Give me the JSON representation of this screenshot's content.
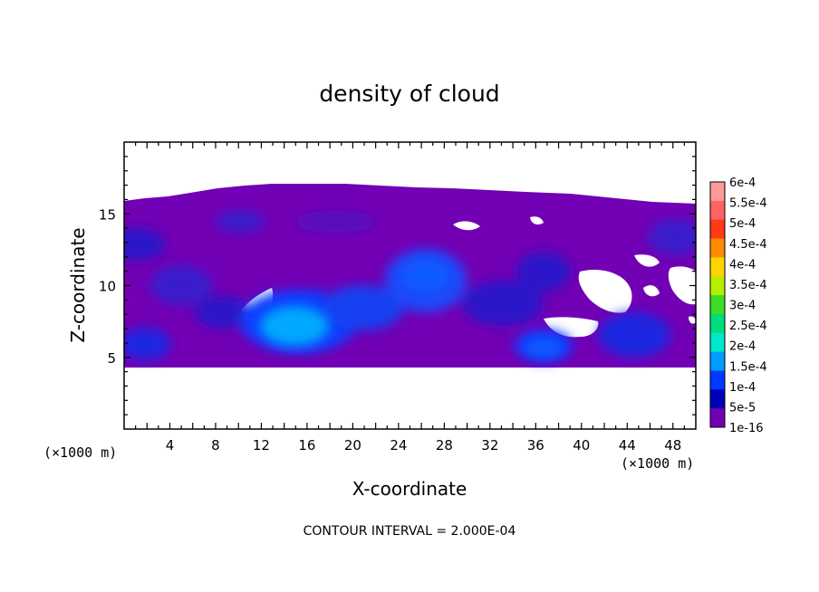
{
  "chart_data": {
    "type": "heatmap",
    "title": "density of cloud",
    "xlabel": "X-coordinate",
    "ylabel": "Z-coordinate",
    "x_unit": "(×1000 m)",
    "y_unit": "(×1000 m)",
    "xlim": [
      0,
      50
    ],
    "ylim": [
      0,
      20
    ],
    "x_ticks": [
      4,
      8,
      12,
      16,
      20,
      24,
      28,
      32,
      36,
      40,
      44,
      48
    ],
    "y_ticks": [
      5,
      10,
      15
    ],
    "colorbar": {
      "labels": [
        "6e-4",
        "5.5e-4",
        "5e-4",
        "4.5e-4",
        "4e-4",
        "3.5e-4",
        "3e-4",
        "2.5e-4",
        "2e-4",
        "1.5e-4",
        "1e-4",
        "5e-5",
        "1e-16"
      ],
      "colors": [
        "#ff9a9a",
        "#ff6262",
        "#ff3a14",
        "#ff8c00",
        "#ffd400",
        "#b8ee00",
        "#3cdc28",
        "#00dc7a",
        "#00e8c8",
        "#009cff",
        "#0038ff",
        "#0000b8",
        "#7200b4"
      ]
    },
    "cloud_base_km": 4.4,
    "cloud_top_km": 16.5,
    "contour_interval": "2.000E-04",
    "features": [
      {
        "level": "high",
        "x": 15.5,
        "z": 7.0,
        "value": 0.00015
      },
      {
        "level": "medium",
        "x": 26,
        "z": 10.5,
        "value": 0.0001
      },
      {
        "level": "medium",
        "x": 35.5,
        "z": 5.5,
        "value": 0.0001
      },
      {
        "level": "medium",
        "x": 46,
        "z": 6.5,
        "value": 0.0001
      }
    ]
  },
  "footer": {
    "contour_label": "CONTOUR INTERVAL = 2.000E-04"
  }
}
